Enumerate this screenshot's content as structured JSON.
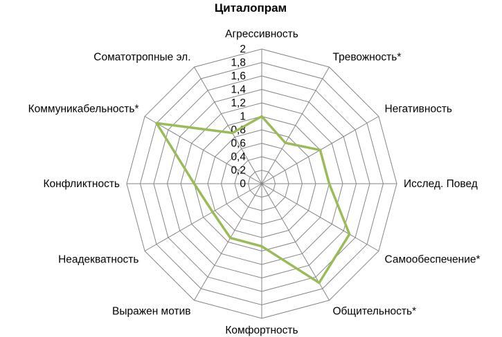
{
  "chart_data": {
    "type": "radar",
    "title": "Циталопрам",
    "categories": [
      "Агрессивность",
      "Тревожность*",
      "Негативность",
      "Исслед. Повед",
      "Самообеспечение*",
      "Общительность*",
      "Комфортность",
      "Выражен мотив",
      "Неадекватность",
      "Конфликтность",
      "Коммуникабельность*",
      "Соматотропные эл."
    ],
    "r_ticks": [
      "0",
      "0,2",
      "0,4",
      "0,6",
      "0,8",
      "1",
      "1,2",
      "1,4",
      "1,6",
      "1,8",
      "2"
    ],
    "rlim": [
      0,
      2
    ],
    "grid": true,
    "legend": "none",
    "series": [
      {
        "values": [
          1.0,
          0.7,
          1.0,
          1.0,
          1.5,
          1.7,
          0.93,
          0.93,
          0.84,
          1.0,
          1.8,
          0.87
        ],
        "color": "#9bbb59"
      }
    ]
  }
}
